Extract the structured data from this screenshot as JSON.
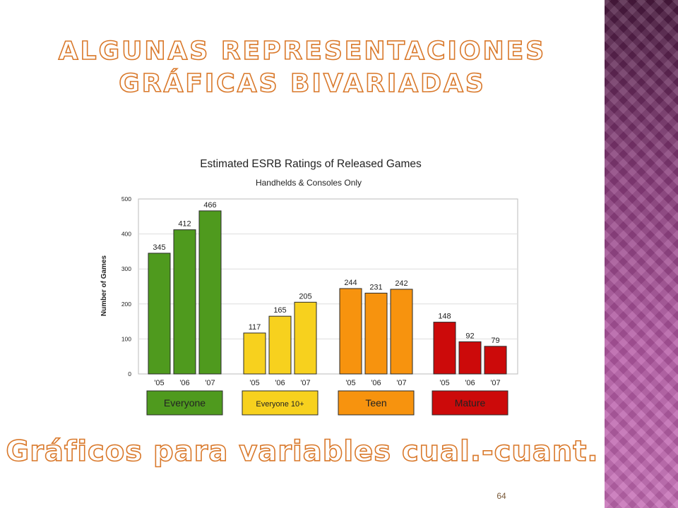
{
  "slide": {
    "title_line1": "ALGUNAS REPRESENTACIONES",
    "title_line2": "GRÁFICAS BIVARIADAS",
    "subtitle": "Gráficos para variables cual.-cuant.",
    "page_number": "64"
  },
  "colors": {
    "title_outline": "#d9782a",
    "side_panel": "#8e3f7f"
  },
  "chart_data": {
    "type": "bar",
    "title": "Estimated ESRB Ratings of Released Games",
    "subtitle": "Handhelds & Consoles Only",
    "ylabel": "Number of Games",
    "ylim": [
      0,
      500
    ],
    "yticks": [
      "0",
      "100",
      "200",
      "300",
      "400",
      "500"
    ],
    "grid": true,
    "groups": [
      {
        "name": "Everyone",
        "color": "#4f9a1e",
        "categories": [
          "'05",
          "'06",
          "'07"
        ],
        "values": [
          345,
          412,
          466
        ]
      },
      {
        "name": "Everyone 10+",
        "color": "#f7d11e",
        "categories": [
          "'05",
          "'06",
          "'07"
        ],
        "values": [
          117,
          165,
          205
        ]
      },
      {
        "name": "Teen",
        "color": "#f7930e",
        "categories": [
          "'05",
          "'06",
          "'07"
        ],
        "values": [
          244,
          231,
          242
        ]
      },
      {
        "name": "Mature",
        "color": "#cc0a0a",
        "categories": [
          "'05",
          "'06",
          "'07"
        ],
        "values": [
          148,
          92,
          79
        ]
      }
    ]
  }
}
